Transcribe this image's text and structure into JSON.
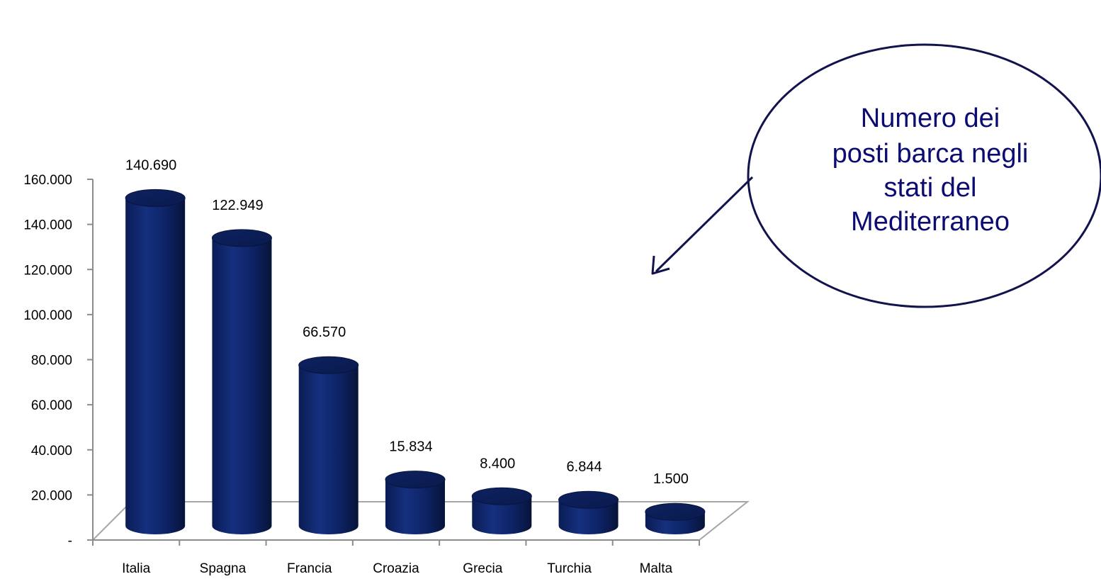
{
  "chart_data": {
    "type": "bar",
    "style": "3d-cylinder",
    "categories": [
      "Italia",
      "Spagna",
      "Francia",
      "Croazia",
      "Grecia",
      "Turchia",
      "Malta"
    ],
    "values": [
      140690,
      122949,
      66570,
      15834,
      8400,
      6844,
      1500
    ],
    "data_labels": [
      "140.690",
      "122.949",
      "66.570",
      "15.834",
      "8.400",
      "6.844",
      "1.500"
    ],
    "title": "",
    "xlabel": "",
    "ylabel": "",
    "ylim": [
      0,
      160000
    ],
    "yticks": [
      0,
      20000,
      40000,
      60000,
      80000,
      100000,
      120000,
      140000,
      160000
    ],
    "ytick_labels": [
      "-",
      "20.000",
      "40.000",
      "60.000",
      "80.000",
      "100.000",
      "120.000",
      "140.000",
      "160.000"
    ],
    "grid": false,
    "legend": "none",
    "bar_color": "#0c1e5c"
  },
  "callout": {
    "lines": [
      "Numero dei",
      "posti barca negli",
      "stati del",
      "Mediterraneo"
    ],
    "text_color": "#0b0b73",
    "border_color": "#12124d"
  }
}
